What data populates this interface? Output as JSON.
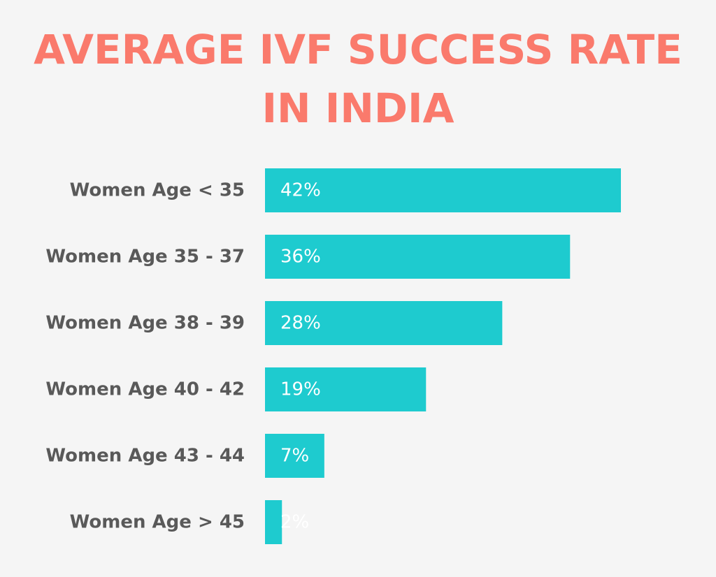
{
  "title_lines": [
    "AVERAGE IVF SUCCESS RATE",
    "IN INDIA"
  ],
  "colors": {
    "background": "#f5f5f5",
    "title": "#fa7a6c",
    "bar": "#1ecbcf",
    "category_text": "#595959",
    "value_text": "#ffffff"
  },
  "chart_data": {
    "type": "bar",
    "orientation": "horizontal",
    "title": "AVERAGE IVF SUCCESS RATE IN INDIA",
    "categories": [
      "Women Age < 35",
      "Women Age 35 - 37",
      "Women Age 38 - 39",
      "Women Age 40 - 42",
      "Women Age 43 - 44",
      "Women Age > 45"
    ],
    "values": [
      42,
      36,
      28,
      19,
      7,
      2
    ],
    "value_labels": [
      "42%",
      "36%",
      "28%",
      "19%",
      "7%",
      "2%"
    ],
    "unit": "%",
    "grid": false,
    "legend": "none"
  }
}
